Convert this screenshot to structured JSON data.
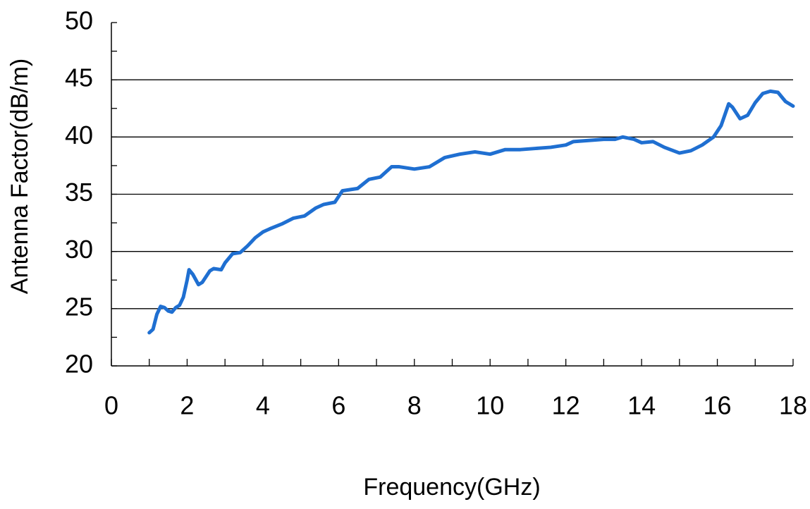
{
  "chart_data": {
    "type": "line",
    "x_label": "Frequency(GHz)",
    "y_label": "Antenna Factor(dB/m)",
    "xlim": [
      0,
      18
    ],
    "xticks": [
      0,
      2,
      4,
      6,
      8,
      10,
      12,
      14,
      16,
      18
    ],
    "xminorticks": [
      1,
      3,
      5,
      7,
      9,
      11,
      13,
      15,
      17
    ],
    "ylim": [
      20,
      50
    ],
    "yticks": [
      20,
      25,
      30,
      35,
      40,
      45,
      50
    ],
    "yminorticks": [
      22.5,
      27.5,
      32.5,
      37.5,
      42.5,
      47.5
    ],
    "grid": true,
    "series": [
      {
        "color": "#1f6fd1",
        "x": [
          1.0,
          1.1,
          1.2,
          1.3,
          1.4,
          1.5,
          1.6,
          1.7,
          1.8,
          1.9,
          2.0,
          2.05,
          2.15,
          2.3,
          2.4,
          2.6,
          2.7,
          2.9,
          3.0,
          3.2,
          3.4,
          3.6,
          3.8,
          4.0,
          4.2,
          4.5,
          4.8,
          5.1,
          5.4,
          5.6,
          5.9,
          6.1,
          6.3,
          6.5,
          6.8,
          7.1,
          7.4,
          7.6,
          8.0,
          8.4,
          8.8,
          9.2,
          9.6,
          10.0,
          10.4,
          10.8,
          11.2,
          11.6,
          12.0,
          12.2,
          12.6,
          13.0,
          13.3,
          13.5,
          13.8,
          14.0,
          14.3,
          14.6,
          15.0,
          15.3,
          15.6,
          15.9,
          16.1,
          16.3,
          16.4,
          16.6,
          16.8,
          17.0,
          17.2,
          17.4,
          17.6,
          17.8,
          18.0
        ],
        "values": [
          22.9,
          23.2,
          24.5,
          25.2,
          25.1,
          24.8,
          24.7,
          25.1,
          25.3,
          26.0,
          27.5,
          28.4,
          28.0,
          27.1,
          27.3,
          28.3,
          28.5,
          28.4,
          29.0,
          29.8,
          29.9,
          30.5,
          31.2,
          31.7,
          32.0,
          32.4,
          32.9,
          33.1,
          33.8,
          34.1,
          34.3,
          35.3,
          35.4,
          35.5,
          36.3,
          36.5,
          37.4,
          37.4,
          37.2,
          37.4,
          38.2,
          38.5,
          38.7,
          38.5,
          38.9,
          38.9,
          39.0,
          39.1,
          39.3,
          39.6,
          39.7,
          39.8,
          39.8,
          40.0,
          39.8,
          39.5,
          39.6,
          39.1,
          38.6,
          38.8,
          39.3,
          40.0,
          41.0,
          42.9,
          42.6,
          41.6,
          41.9,
          43.0,
          43.8,
          44.0,
          43.9,
          43.1,
          42.7
        ]
      }
    ]
  }
}
